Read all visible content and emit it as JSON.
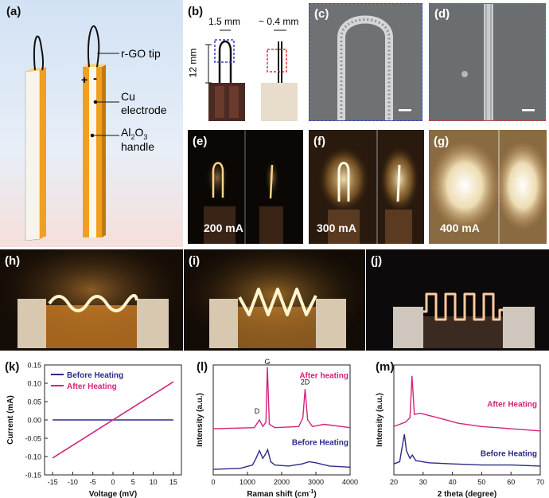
{
  "figure": {
    "panel_a": {
      "label": "(a)",
      "tip": "r-GO tip",
      "cu1": "Cu",
      "cu2": "electrode",
      "al_base": "Al",
      "al_sub": "2",
      "al_mid": "O",
      "al_sub2": "3",
      "al2": "handle",
      "plus": "+",
      "minus": "-"
    },
    "panel_b": {
      "label": "(b)",
      "dim_width": "1.5 mm",
      "dim_width2": "~ 0.4 mm",
      "dim_height": "12 mm"
    },
    "panel_c": {
      "label": "(c)"
    },
    "panel_d": {
      "label": "(d)"
    },
    "panel_e": {
      "label": "(e)",
      "current": "200 mA"
    },
    "panel_f": {
      "label": "(f)",
      "current": "300 mA"
    },
    "panel_g": {
      "label": "(g)",
      "current": "400 mA"
    },
    "panel_h": {
      "label": "(h)"
    },
    "panel_i": {
      "label": "(i)"
    },
    "panel_j": {
      "label": "(j)"
    },
    "colors": {
      "navy": "#2b2b8a",
      "magenta": "#d4237a",
      "electrode": "#f0a020"
    }
  },
  "chart_data": [
    {
      "id": "k",
      "label": "(k)",
      "type": "line",
      "xlabel": "Voltage (mV)",
      "ylabel": "Current (mA)",
      "xlim": [
        -17,
        17
      ],
      "ylim": [
        -0.15,
        0.15
      ],
      "xticks": [
        -15,
        -10,
        -5,
        0,
        5,
        10,
        15
      ],
      "yticks": [
        -0.15,
        -0.1,
        -0.05,
        0.0,
        0.05,
        0.1,
        0.15
      ],
      "xtick_labels": [
        "-15",
        "-10",
        "-5",
        "0",
        "5",
        "10",
        "15"
      ],
      "ytick_labels": [
        "-0.15",
        "-0.10",
        "-0.05",
        "0.00",
        "0.05",
        "0.10",
        "0.15"
      ],
      "series": [
        {
          "name": "Before Heating",
          "x": [
            -15,
            15
          ],
          "y": [
            0.0,
            0.0
          ]
        },
        {
          "name": "After Heating",
          "x": [
            -15,
            15
          ],
          "y": [
            -0.104,
            0.104
          ]
        }
      ]
    },
    {
      "id": "l",
      "label": "(l)",
      "type": "line",
      "xlabel": "Raman shift (cm",
      "xlabel_sup": "-1",
      "xlabel_end": ")",
      "ylabel": "Intensity (a.u.)",
      "xlim": [
        0,
        4000
      ],
      "xticks": [
        0,
        1000,
        2000,
        3000,
        4000
      ],
      "xtick_labels": [
        "0",
        "1000",
        "2000",
        "3000",
        "4000"
      ],
      "annotations": [
        "D",
        "G",
        "2D"
      ],
      "series": [
        {
          "name": "After heating",
          "x": [
            0,
            1200,
            1350,
            1450,
            1540,
            1582,
            1640,
            1800,
            2500,
            2620,
            2685,
            2760,
            2900,
            3240,
            4000
          ],
          "y": [
            0.42,
            0.43,
            0.5,
            0.44,
            0.48,
            0.98,
            0.46,
            0.43,
            0.44,
            0.52,
            0.78,
            0.5,
            0.44,
            0.46,
            0.43
          ]
        },
        {
          "name": "Before Heating",
          "x": [
            0,
            800,
            1150,
            1250,
            1350,
            1450,
            1530,
            1590,
            1680,
            1800,
            2200,
            2600,
            2800,
            3000,
            3400,
            4000
          ],
          "y": [
            0.05,
            0.06,
            0.09,
            0.15,
            0.22,
            0.15,
            0.19,
            0.23,
            0.12,
            0.09,
            0.08,
            0.1,
            0.12,
            0.11,
            0.08,
            0.07
          ]
        }
      ]
    },
    {
      "id": "m",
      "label": "(m)",
      "type": "line",
      "xlabel": "2 theta (degree)",
      "ylabel": "Intensity (a.u.)",
      "xlim": [
        20,
        70
      ],
      "xticks": [
        20,
        30,
        40,
        50,
        60,
        70
      ],
      "xtick_labels": [
        "20",
        "30",
        "40",
        "50",
        "60",
        "70"
      ],
      "series": [
        {
          "name": "After Heating",
          "x": [
            20,
            24,
            25.5,
            26.2,
            27,
            29,
            35,
            42,
            50,
            60,
            70
          ],
          "y": [
            0.44,
            0.48,
            0.52,
            0.9,
            0.55,
            0.56,
            0.52,
            0.47,
            0.44,
            0.42,
            0.4
          ]
        },
        {
          "name": "Before Heating",
          "x": [
            20,
            22,
            23.0,
            23.6,
            24.3,
            25.5,
            26.3,
            27.5,
            32,
            40,
            50,
            60,
            70
          ],
          "y": [
            0.1,
            0.12,
            0.28,
            0.37,
            0.22,
            0.15,
            0.18,
            0.13,
            0.11,
            0.1,
            0.09,
            0.09,
            0.08
          ]
        }
      ]
    }
  ]
}
